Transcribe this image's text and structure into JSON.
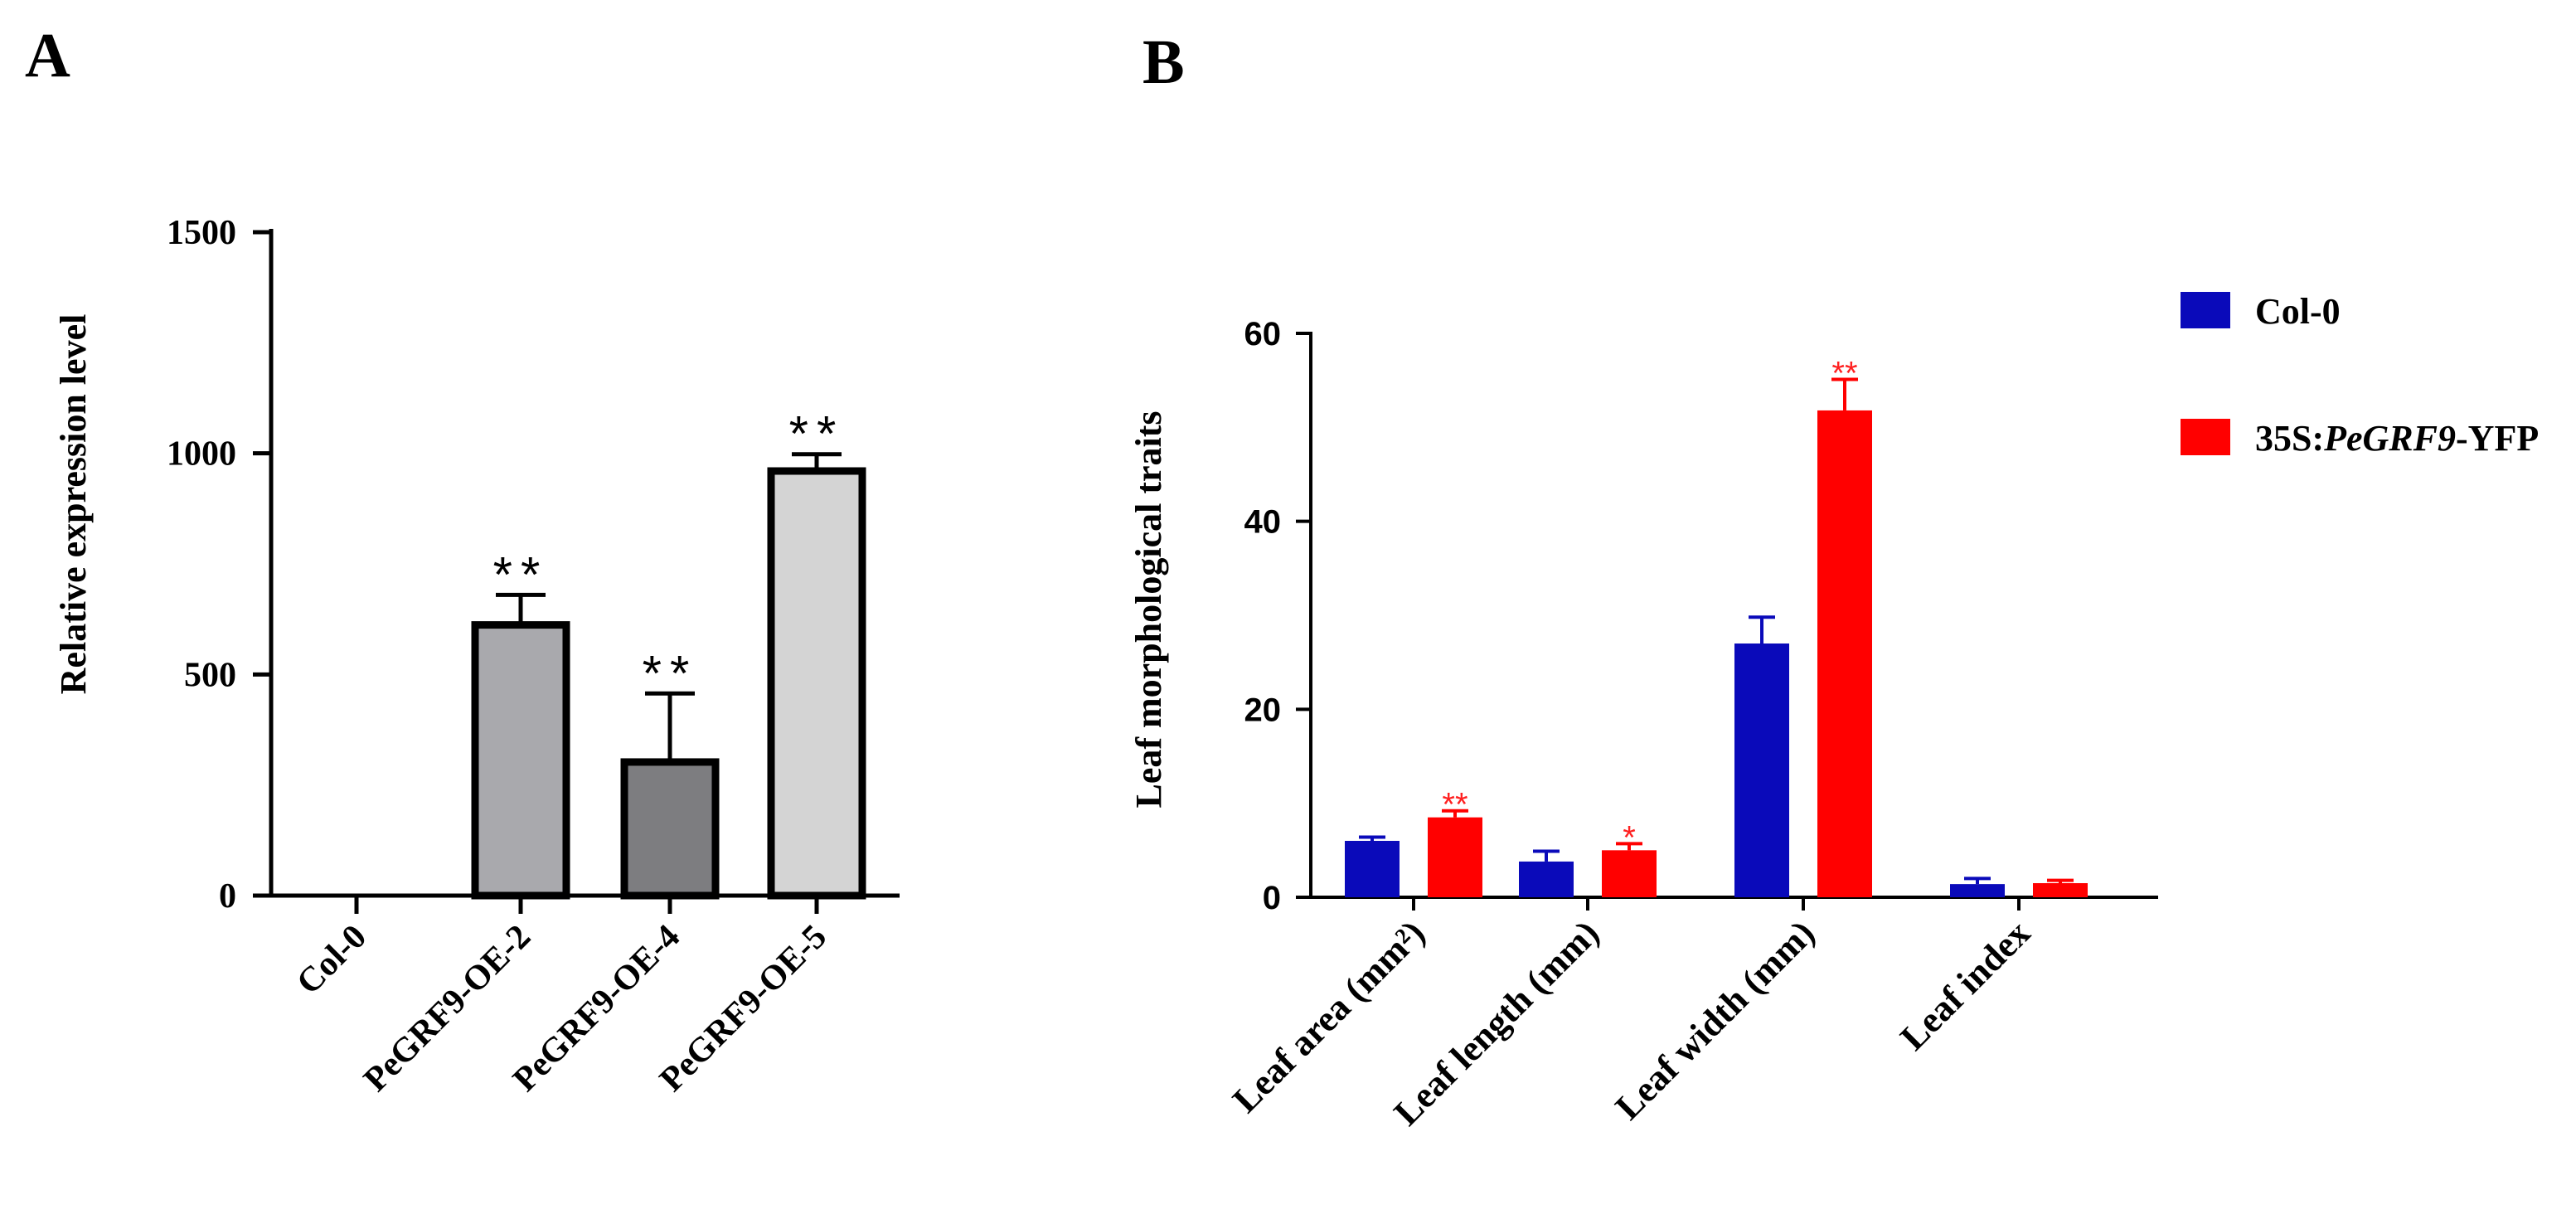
{
  "chart_data": [
    {
      "panel": "A",
      "type": "bar",
      "title": "",
      "xlabel": "",
      "ylabel": "Relative expression level",
      "ylim": [
        0,
        1500
      ],
      "yticks": [
        0,
        500,
        1000,
        1500
      ],
      "categories": [
        "Col-0",
        "PeGRF9-OE-2",
        "PeGRF9-OE-4",
        "PeGRF9-OE-5"
      ],
      "values": [
        0,
        612,
        302,
        960
      ],
      "errors": [
        0,
        68,
        155,
        38
      ],
      "significance": [
        "",
        "**",
        "**",
        "**"
      ],
      "colors": [
        "#ffffff",
        "#a9a9ad",
        "#7d7d80",
        "#d4d4d4"
      ]
    },
    {
      "panel": "B",
      "type": "bar",
      "title": "",
      "xlabel": "",
      "ylabel": "Leaf morphological traits",
      "ylim": [
        0,
        60
      ],
      "yticks": [
        0,
        20,
        40,
        60
      ],
      "categories": [
        "Leaf area (mm²)",
        "Leaf length (mm)",
        "Leaf width (mm)",
        "Leaf index"
      ],
      "series": [
        {
          "name": "Col-0",
          "color": "#0a0aba",
          "values": [
            6.0,
            3.8,
            27.0,
            1.4
          ],
          "errors": [
            0.4,
            1.1,
            2.8,
            0.6
          ],
          "significance": [
            "",
            "",
            "",
            ""
          ]
        },
        {
          "name": "35S:PeGRF9-YFP",
          "name_prefix": "35S:",
          "name_italic": "PeGRF9",
          "name_suffix": "-YFP",
          "color": "#ff0000",
          "values": [
            8.5,
            5.0,
            51.8,
            1.5
          ],
          "errors": [
            0.7,
            0.7,
            3.3,
            0.3
          ],
          "significance": [
            "**",
            "*",
            "**",
            ""
          ]
        }
      ],
      "legend_position": "top-right"
    }
  ]
}
